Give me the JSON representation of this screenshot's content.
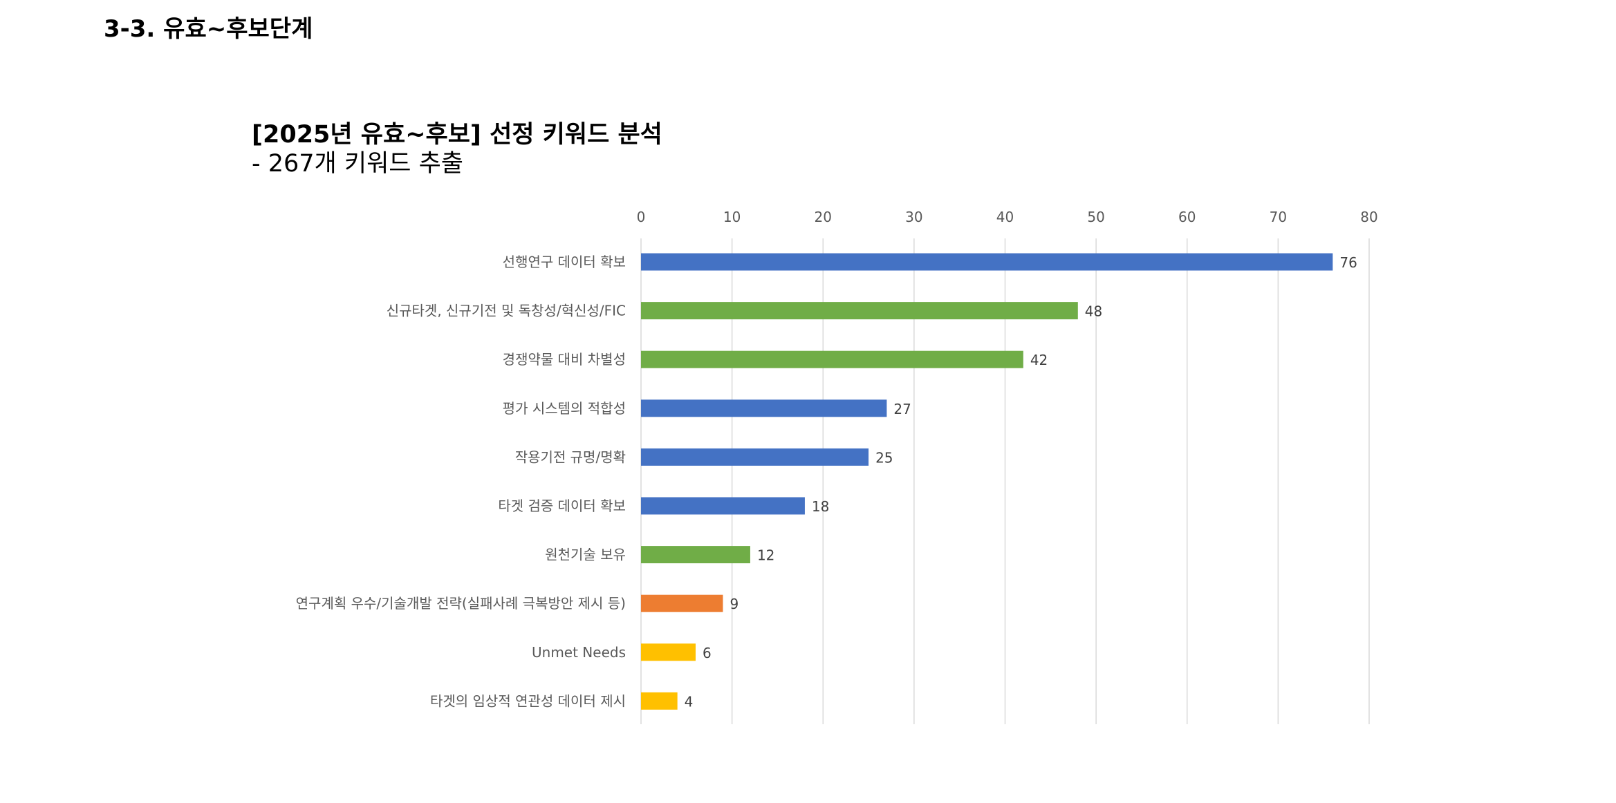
{
  "page": {
    "section_heading": "3-3. 유효~후보단계"
  },
  "chart_data": {
    "type": "bar",
    "orientation": "horizontal",
    "title": "[2025년 유효~후보] 선정 키워드 분석",
    "subtitle": "- 267개 키워드 추출",
    "xlim": [
      0,
      80
    ],
    "x_ticks": [
      0,
      10,
      20,
      30,
      40,
      50,
      60,
      70,
      80
    ],
    "x_axis_position": "top",
    "grid": true,
    "legend": "none",
    "categories": [
      "선행연구 데이터 확보",
      "신규타겟, 신규기전 및 독창성/혁신성/FIC",
      "경쟁약물 대비 차별성",
      "평가 시스템의 적합성",
      "작용기전 규명/명확",
      "타겟 검증 데이터 확보",
      "원천기술 보유",
      "연구계획 우수/기술개발 전략(실패사례 극복방안 제시 등)",
      "Unmet Needs",
      "타겟의 임상적 연관성 데이터 제시"
    ],
    "values": [
      76,
      48,
      42,
      27,
      25,
      18,
      12,
      9,
      6,
      4
    ],
    "bar_colors": [
      "#4472C4",
      "#70AD47",
      "#70AD47",
      "#4472C4",
      "#4472C4",
      "#4472C4",
      "#70AD47",
      "#ED7D31",
      "#FFC000",
      "#FFC000"
    ],
    "data_labels": true,
    "colors": {
      "gridline": "#D9D9D9",
      "axis_text": "#595959",
      "data_label": "#404040"
    }
  }
}
